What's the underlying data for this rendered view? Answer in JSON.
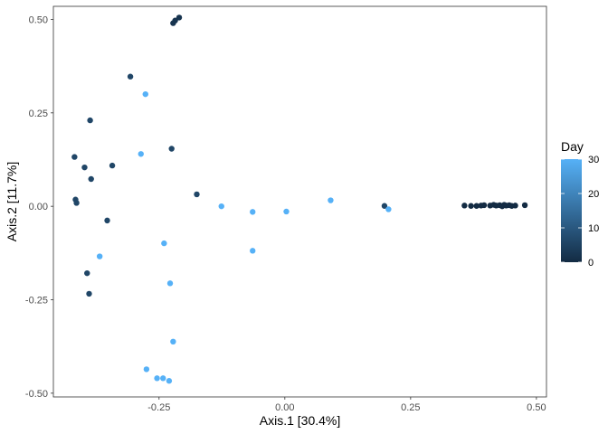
{
  "chart_data": {
    "type": "scatter",
    "xlabel": "Axis.1   [30.4%]",
    "ylabel": "Axis.2   [11.7%]",
    "xlim": [
      -0.46,
      0.52
    ],
    "ylim": [
      -0.51,
      0.535
    ],
    "x_ticks": [
      -0.25,
      0.0,
      0.25,
      0.5
    ],
    "x_tick_labels": [
      "-0.25",
      "0.00",
      "0.25",
      "0.50"
    ],
    "y_ticks": [
      -0.5,
      -0.25,
      0.0,
      0.25,
      0.5
    ],
    "y_tick_labels": [
      "-0.50",
      "-0.25",
      "0.00",
      "0.25",
      "0.50"
    ],
    "grid": false,
    "legend": {
      "title": "Day",
      "position": "right",
      "min": 0,
      "max": 30,
      "ticks": [
        0,
        10,
        20,
        30
      ],
      "tick_labels": [
        "0",
        "10",
        "20",
        "30"
      ],
      "color_low": "#132B43",
      "color_high": "#56B1F7"
    },
    "points": [
      {
        "x": -0.21,
        "y": 0.505,
        "day": 2
      },
      {
        "x": -0.218,
        "y": 0.497,
        "day": 2
      },
      {
        "x": -0.222,
        "y": 0.49,
        "day": 2
      },
      {
        "x": -0.307,
        "y": 0.347,
        "day": 6
      },
      {
        "x": -0.277,
        "y": 0.3,
        "day": 30
      },
      {
        "x": -0.387,
        "y": 0.23,
        "day": 6
      },
      {
        "x": -0.225,
        "y": 0.154,
        "day": 6
      },
      {
        "x": -0.286,
        "y": 0.14,
        "day": 30
      },
      {
        "x": -0.418,
        "y": 0.132,
        "day": 6
      },
      {
        "x": -0.343,
        "y": 0.109,
        "day": 6
      },
      {
        "x": -0.398,
        "y": 0.104,
        "day": 6
      },
      {
        "x": -0.385,
        "y": 0.073,
        "day": 6
      },
      {
        "x": -0.175,
        "y": 0.032,
        "day": 6
      },
      {
        "x": -0.416,
        "y": 0.018,
        "day": 6
      },
      {
        "x": -0.414,
        "y": 0.009,
        "day": 6
      },
      {
        "x": -0.126,
        "y": 0.0,
        "day": 30
      },
      {
        "x": -0.064,
        "y": -0.015,
        "day": 30
      },
      {
        "x": 0.003,
        "y": -0.014,
        "day": 30
      },
      {
        "x": 0.091,
        "y": 0.016,
        "day": 30
      },
      {
        "x": 0.198,
        "y": 0.001,
        "day": 6
      },
      {
        "x": 0.206,
        "y": -0.008,
        "day": 30
      },
      {
        "x": -0.353,
        "y": -0.038,
        "day": 6
      },
      {
        "x": -0.24,
        "y": -0.099,
        "day": 30
      },
      {
        "x": -0.064,
        "y": -0.119,
        "day": 30
      },
      {
        "x": -0.368,
        "y": -0.134,
        "day": 30
      },
      {
        "x": -0.393,
        "y": -0.179,
        "day": 6
      },
      {
        "x": -0.228,
        "y": -0.206,
        "day": 30
      },
      {
        "x": -0.389,
        "y": -0.234,
        "day": 6
      },
      {
        "x": -0.222,
        "y": -0.362,
        "day": 30
      },
      {
        "x": -0.275,
        "y": -0.436,
        "day": 30
      },
      {
        "x": -0.254,
        "y": -0.46,
        "day": 30
      },
      {
        "x": -0.242,
        "y": -0.46,
        "day": 30
      },
      {
        "x": -0.23,
        "y": -0.467,
        "day": 30
      },
      {
        "x": 0.357,
        "y": 0.002,
        "day": 0
      },
      {
        "x": 0.37,
        "y": 0.001,
        "day": 0
      },
      {
        "x": 0.381,
        "y": 0.001,
        "day": 0
      },
      {
        "x": 0.39,
        "y": 0.002,
        "day": 0
      },
      {
        "x": 0.396,
        "y": 0.003,
        "day": 0
      },
      {
        "x": 0.408,
        "y": 0.002,
        "day": 0
      },
      {
        "x": 0.415,
        "y": 0.004,
        "day": 0
      },
      {
        "x": 0.42,
        "y": 0.002,
        "day": 0
      },
      {
        "x": 0.427,
        "y": 0.003,
        "day": 0
      },
      {
        "x": 0.432,
        "y": 0.0,
        "day": 0
      },
      {
        "x": 0.436,
        "y": 0.004,
        "day": 0
      },
      {
        "x": 0.44,
        "y": 0.002,
        "day": 0
      },
      {
        "x": 0.446,
        "y": 0.003,
        "day": 0
      },
      {
        "x": 0.451,
        "y": 0.001,
        "day": 0
      },
      {
        "x": 0.458,
        "y": 0.002,
        "day": 0
      },
      {
        "x": 0.477,
        "y": 0.003,
        "day": 0
      }
    ]
  }
}
